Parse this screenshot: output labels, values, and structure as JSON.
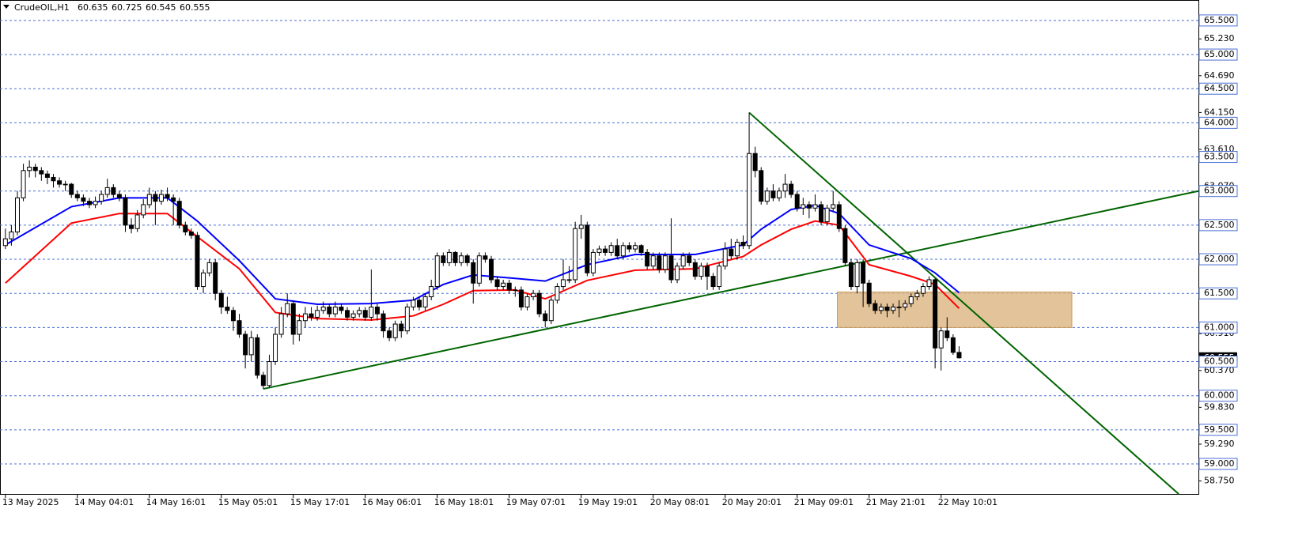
{
  "chart_data": {
    "type": "candlestick",
    "symbol": "CrudeOIL,H1",
    "categories": [
      "13 May 2025",
      null,
      null,
      null,
      null,
      null,
      null,
      null,
      null,
      null,
      null,
      null,
      "14 May 04:01",
      null,
      null,
      null,
      null,
      null,
      null,
      null,
      null,
      null,
      null,
      null,
      "14 May 16:01",
      null,
      null,
      null,
      null,
      null,
      null,
      null,
      null,
      null,
      null,
      null,
      "15 May 05:01",
      null,
      null,
      null,
      null,
      null,
      null,
      null,
      null,
      null,
      null,
      null,
      "15 May 17:01",
      null,
      null,
      null,
      null,
      null,
      null,
      null,
      null,
      null,
      null,
      null,
      "16 May 06:01",
      null,
      null,
      null,
      null,
      null,
      null,
      null,
      null,
      null,
      null,
      null,
      "16 May 18:01",
      null,
      null,
      null,
      null,
      null,
      null,
      null,
      null,
      null,
      null,
      null,
      "19 May 07:01",
      null,
      null,
      null,
      null,
      null,
      null,
      null,
      null,
      null,
      null,
      null,
      "19 May 19:01",
      null,
      null,
      null,
      null,
      null,
      null,
      null,
      null,
      null,
      null,
      null,
      "20 May 08:01",
      null,
      null,
      null,
      null,
      null,
      null,
      null,
      null,
      null,
      null,
      null,
      "20 May 20:01",
      null,
      null,
      null,
      null,
      null,
      null,
      null,
      null,
      null,
      null,
      null,
      "21 May 09:01",
      null,
      null,
      null,
      null,
      null,
      null,
      null,
      null,
      null,
      null,
      null,
      "21 May 21:01",
      null,
      null,
      null,
      null,
      null,
      null,
      null,
      null,
      null,
      null,
      null,
      "22 May 10:01",
      null,
      null,
      null
    ],
    "candles": [
      [
        62.2,
        62.45,
        62.15,
        62.3
      ],
      [
        62.3,
        62.5,
        62.2,
        62.4
      ],
      [
        62.4,
        63.0,
        62.35,
        62.9
      ],
      [
        62.9,
        63.4,
        62.85,
        63.3
      ],
      [
        63.3,
        63.45,
        63.2,
        63.35
      ],
      [
        63.35,
        63.4,
        63.2,
        63.3
      ],
      [
        63.3,
        63.35,
        63.15,
        63.25
      ],
      [
        63.25,
        63.3,
        63.1,
        63.2
      ],
      [
        63.2,
        63.25,
        63.05,
        63.15
      ],
      [
        63.15,
        63.2,
        63.05,
        63.1
      ],
      [
        63.1,
        63.15,
        63.0,
        63.1
      ],
      [
        63.1,
        63.12,
        62.9,
        62.95
      ],
      [
        62.95,
        63.0,
        62.85,
        62.9
      ],
      [
        62.9,
        62.95,
        62.78,
        62.85
      ],
      [
        62.85,
        62.9,
        62.75,
        62.8
      ],
      [
        62.8,
        62.92,
        62.75,
        62.85
      ],
      [
        62.85,
        63.0,
        62.8,
        62.95
      ],
      [
        62.95,
        63.18,
        62.9,
        63.05
      ],
      [
        63.05,
        63.1,
        62.9,
        62.95
      ],
      [
        62.95,
        63.0,
        62.85,
        62.9
      ],
      [
        62.9,
        62.95,
        62.4,
        62.5
      ],
      [
        62.5,
        62.6,
        62.38,
        62.45
      ],
      [
        62.45,
        62.72,
        62.4,
        62.65
      ],
      [
        62.65,
        62.88,
        62.6,
        62.8
      ],
      [
        62.8,
        63.05,
        62.75,
        62.95
      ],
      [
        62.95,
        63.0,
        62.5,
        62.85
      ],
      [
        62.85,
        63.02,
        62.8,
        62.95
      ],
      [
        62.95,
        63.05,
        62.85,
        62.9
      ],
      [
        62.9,
        62.95,
        62.5,
        62.85
      ],
      [
        62.85,
        62.9,
        62.45,
        62.5
      ],
      [
        62.5,
        62.55,
        62.35,
        62.4
      ],
      [
        62.4,
        62.45,
        62.3,
        62.35
      ],
      [
        62.35,
        62.4,
        61.55,
        61.6
      ],
      [
        61.6,
        61.85,
        61.5,
        61.8
      ],
      [
        61.8,
        62.0,
        61.75,
        61.95
      ],
      [
        61.95,
        62.0,
        61.4,
        61.5
      ],
      [
        61.5,
        61.55,
        61.2,
        61.3
      ],
      [
        61.3,
        61.45,
        61.2,
        61.25
      ],
      [
        61.25,
        61.3,
        60.95,
        61.1
      ],
      [
        61.1,
        61.2,
        60.85,
        60.9
      ],
      [
        60.9,
        60.95,
        60.4,
        60.6
      ],
      [
        60.6,
        60.95,
        60.5,
        60.85
      ],
      [
        60.85,
        60.9,
        60.25,
        60.3
      ],
      [
        60.3,
        60.35,
        60.1,
        60.15
      ],
      [
        60.15,
        60.6,
        60.12,
        60.5
      ],
      [
        60.5,
        61.0,
        60.45,
        60.9
      ],
      [
        60.9,
        61.3,
        60.85,
        61.2
      ],
      [
        61.2,
        61.5,
        61.15,
        61.35
      ],
      [
        61.35,
        61.4,
        60.75,
        60.9
      ],
      [
        60.9,
        61.2,
        60.8,
        61.1
      ],
      [
        61.1,
        61.3,
        61.0,
        61.2
      ],
      [
        61.2,
        61.3,
        61.1,
        61.15
      ],
      [
        61.15,
        61.32,
        61.1,
        61.25
      ],
      [
        61.25,
        61.38,
        61.2,
        61.3
      ],
      [
        61.3,
        61.35,
        61.15,
        61.2
      ],
      [
        61.2,
        61.38,
        61.15,
        61.3
      ],
      [
        61.3,
        61.35,
        61.2,
        61.25
      ],
      [
        61.25,
        61.3,
        61.1,
        61.15
      ],
      [
        61.15,
        61.25,
        61.1,
        61.2
      ],
      [
        61.2,
        61.3,
        61.15,
        61.25
      ],
      [
        61.25,
        61.3,
        61.1,
        61.15
      ],
      [
        61.15,
        61.85,
        61.1,
        61.3
      ],
      [
        61.3,
        61.35,
        61.1,
        61.2
      ],
      [
        61.2,
        61.25,
        60.85,
        60.95
      ],
      [
        60.95,
        61.0,
        60.8,
        60.85
      ],
      [
        60.85,
        61.1,
        60.8,
        61.05
      ],
      [
        61.05,
        61.1,
        60.85,
        60.95
      ],
      [
        60.95,
        61.35,
        60.9,
        61.3
      ],
      [
        61.3,
        61.45,
        61.25,
        61.4
      ],
      [
        61.4,
        61.45,
        61.25,
        61.3
      ],
      [
        61.3,
        61.5,
        61.25,
        61.45
      ],
      [
        61.45,
        61.7,
        61.4,
        61.6
      ],
      [
        61.6,
        62.1,
        61.55,
        62.05
      ],
      [
        62.05,
        62.1,
        61.9,
        61.95
      ],
      [
        61.95,
        62.15,
        61.9,
        62.1
      ],
      [
        62.1,
        62.12,
        61.9,
        61.95
      ],
      [
        61.95,
        62.1,
        61.9,
        62.05
      ],
      [
        62.05,
        62.08,
        61.9,
        61.95
      ],
      [
        61.95,
        62.0,
        61.35,
        61.65
      ],
      [
        61.65,
        62.1,
        61.6,
        62.05
      ],
      [
        62.05,
        62.1,
        61.95,
        62.0
      ],
      [
        62.0,
        62.05,
        61.65,
        61.7
      ],
      [
        61.7,
        61.75,
        61.55,
        61.6
      ],
      [
        61.6,
        61.7,
        61.55,
        61.65
      ],
      [
        61.65,
        61.7,
        61.5,
        61.55
      ],
      [
        61.55,
        61.6,
        61.45,
        61.55
      ],
      [
        61.55,
        61.6,
        61.25,
        61.3
      ],
      [
        61.3,
        61.5,
        61.25,
        61.45
      ],
      [
        61.45,
        61.55,
        61.4,
        61.5
      ],
      [
        61.5,
        61.55,
        61.15,
        61.2
      ],
      [
        61.2,
        61.25,
        61.0,
        61.1
      ],
      [
        61.1,
        61.45,
        61.05,
        61.4
      ],
      [
        61.4,
        61.65,
        61.35,
        61.6
      ],
      [
        61.6,
        62.0,
        61.55,
        61.7
      ],
      [
        61.7,
        61.9,
        61.65,
        61.7
      ],
      [
        61.7,
        62.55,
        61.65,
        62.45
      ],
      [
        62.45,
        62.65,
        62.3,
        62.5
      ],
      [
        62.5,
        62.55,
        61.75,
        61.8
      ],
      [
        61.8,
        62.15,
        61.75,
        62.1
      ],
      [
        62.1,
        62.2,
        62.05,
        62.15
      ],
      [
        62.15,
        62.2,
        62.05,
        62.1
      ],
      [
        62.1,
        62.25,
        62.05,
        62.2
      ],
      [
        62.2,
        62.3,
        62.0,
        62.05
      ],
      [
        62.05,
        62.25,
        62.0,
        62.2
      ],
      [
        62.2,
        62.25,
        62.1,
        62.15
      ],
      [
        62.15,
        62.25,
        62.1,
        62.2
      ],
      [
        62.2,
        62.22,
        62.05,
        62.1
      ],
      [
        62.1,
        62.15,
        61.85,
        61.9
      ],
      [
        61.9,
        62.1,
        61.85,
        62.05
      ],
      [
        62.05,
        62.1,
        61.8,
        61.85
      ],
      [
        61.85,
        62.1,
        61.8,
        62.05
      ],
      [
        62.05,
        62.6,
        61.65,
        61.7
      ],
      [
        61.7,
        61.95,
        61.65,
        61.9
      ],
      [
        61.9,
        62.1,
        61.85,
        62.05
      ],
      [
        62.05,
        62.1,
        61.9,
        61.95
      ],
      [
        61.95,
        62.0,
        61.7,
        61.75
      ],
      [
        61.75,
        61.95,
        61.7,
        61.9
      ],
      [
        61.9,
        61.95,
        61.55,
        61.75
      ],
      [
        61.75,
        61.8,
        61.55,
        61.6
      ],
      [
        61.6,
        61.95,
        61.55,
        61.9
      ],
      [
        61.9,
        62.25,
        61.85,
        62.15
      ],
      [
        62.15,
        62.3,
        62.0,
        62.05
      ],
      [
        62.05,
        62.3,
        62.0,
        62.25
      ],
      [
        62.25,
        62.35,
        62.15,
        62.2
      ],
      [
        62.2,
        64.15,
        62.15,
        63.55
      ],
      [
        63.55,
        63.65,
        63.2,
        63.3
      ],
      [
        63.3,
        63.35,
        62.8,
        62.85
      ],
      [
        62.85,
        63.05,
        62.8,
        63.0
      ],
      [
        63.0,
        63.1,
        62.85,
        62.9
      ],
      [
        62.9,
        63.05,
        62.85,
        63.0
      ],
      [
        63.0,
        63.25,
        62.9,
        63.1
      ],
      [
        63.1,
        63.15,
        62.9,
        62.95
      ],
      [
        62.95,
        63.0,
        62.7,
        62.75
      ],
      [
        62.75,
        62.9,
        62.65,
        62.8
      ],
      [
        62.8,
        62.85,
        62.6,
        62.75
      ],
      [
        62.75,
        62.95,
        62.7,
        62.8
      ],
      [
        62.8,
        62.85,
        62.5,
        62.55
      ],
      [
        62.55,
        62.8,
        62.5,
        62.75
      ],
      [
        62.75,
        63.0,
        62.7,
        62.8
      ],
      [
        62.8,
        62.85,
        62.4,
        62.45
      ],
      [
        62.45,
        62.5,
        61.9,
        61.95
      ],
      [
        61.95,
        62.0,
        61.55,
        61.6
      ],
      [
        61.6,
        62.0,
        61.5,
        61.95
      ],
      [
        61.95,
        62.0,
        61.3,
        61.65
      ],
      [
        61.65,
        61.7,
        61.3,
        61.35
      ],
      [
        61.35,
        61.4,
        61.2,
        61.25
      ],
      [
        61.25,
        61.35,
        61.2,
        61.3
      ],
      [
        61.3,
        61.35,
        61.15,
        61.25
      ],
      [
        61.25,
        61.35,
        61.2,
        61.3
      ],
      [
        61.3,
        61.4,
        61.15,
        61.3
      ],
      [
        61.3,
        61.4,
        61.25,
        61.35
      ],
      [
        61.35,
        61.5,
        61.3,
        61.45
      ],
      [
        61.45,
        61.55,
        61.4,
        61.5
      ],
      [
        61.5,
        61.65,
        61.45,
        61.6
      ],
      [
        61.6,
        61.75,
        61.55,
        61.7
      ],
      [
        61.7,
        61.72,
        60.4,
        60.7
      ],
      [
        60.7,
        61.0,
        60.37,
        60.95
      ],
      [
        60.95,
        61.15,
        60.8,
        60.85
      ],
      [
        60.85,
        60.9,
        60.6,
        60.635
      ],
      [
        60.635,
        60.725,
        60.545,
        60.555
      ]
    ],
    "series": [
      {
        "color": "#0000ff",
        "x": [
          0,
          11,
          19,
          27,
          32,
          39,
          45,
          52,
          61,
          68,
          73,
          78,
          85,
          90,
          97,
          105,
          115,
          123,
          126,
          131,
          135,
          139,
          144,
          151,
          155,
          159
        ],
        "values": [
          62.21,
          62.77,
          62.9,
          62.9,
          62.56,
          61.98,
          61.42,
          61.34,
          61.35,
          61.4,
          61.63,
          61.77,
          61.72,
          61.68,
          61.92,
          62.07,
          62.07,
          62.21,
          62.44,
          62.73,
          62.79,
          62.67,
          62.21,
          62.01,
          61.8,
          61.51
        ]
      },
      {
        "color": "#ff0000",
        "x": [
          0,
          11,
          19,
          27,
          32,
          39,
          45,
          52,
          61,
          68,
          73,
          78,
          85,
          90,
          97,
          105,
          115,
          123,
          126,
          131,
          135,
          139,
          144,
          151,
          155,
          159
        ],
        "values": [
          61.65,
          62.53,
          62.67,
          62.67,
          62.33,
          61.86,
          61.22,
          61.13,
          61.11,
          61.17,
          61.34,
          61.54,
          61.55,
          61.42,
          61.69,
          61.84,
          61.86,
          62.04,
          62.21,
          62.44,
          62.56,
          62.5,
          61.92,
          61.75,
          61.63,
          61.28
        ]
      }
    ],
    "trendlines": [
      {
        "color": "#006400",
        "x": [
          43,
          198.9
        ],
        "values": [
          60.1,
          63.0
        ]
      },
      {
        "color": "#006400",
        "x": [
          124,
          195.6
        ],
        "values": [
          64.15,
          58.56
        ]
      }
    ],
    "zone": {
      "color": "#deb887",
      "x": [
        138.7,
        177.8
      ],
      "values": [
        61.52,
        61.0
      ]
    },
    "xlim": [
      -0.9,
      198.9
    ],
    "ylim": [
      58.56,
      65.8
    ],
    "levels": [
      {
        "value": 65.5,
        "label": "65.500"
      },
      {
        "value": 65.0,
        "label": "65.000"
      },
      {
        "value": 64.5,
        "label": "64.500"
      },
      {
        "value": 64.0,
        "label": "64.000"
      },
      {
        "value": 63.5,
        "label": "63.500"
      },
      {
        "value": 63.0,
        "label": "63.000"
      },
      {
        "value": 62.5,
        "label": "62.500"
      },
      {
        "value": 62.0,
        "label": "62.000"
      },
      {
        "value": 61.5,
        "label": "61.500"
      },
      {
        "value": 61.0,
        "label": "61.000"
      },
      {
        "value": 60.5,
        "label": "60.500"
      },
      {
        "value": 60.0,
        "label": "60.000"
      },
      {
        "value": 59.5,
        "label": "59.500"
      },
      {
        "value": 59.0,
        "label": "59.000"
      }
    ],
    "yticks": [
      {
        "value": 65.23,
        "label": "65.230"
      },
      {
        "value": 64.69,
        "label": "64.690"
      },
      {
        "value": 64.15,
        "label": "64.150"
      },
      {
        "value": 63.61,
        "label": "63.610"
      },
      {
        "value": 63.07,
        "label": "63.070"
      },
      {
        "value": 60.91,
        "label": "60.910"
      },
      {
        "value": 60.37,
        "label": "60.370"
      },
      {
        "value": 59.83,
        "label": "59.830"
      },
      {
        "value": 59.29,
        "label": "59.290"
      },
      {
        "value": 58.75,
        "label": "58.750"
      }
    ],
    "bull_color": "#ffffff",
    "bear_color": "#000000",
    "grid_color": "#4a6fd4"
  }
}
